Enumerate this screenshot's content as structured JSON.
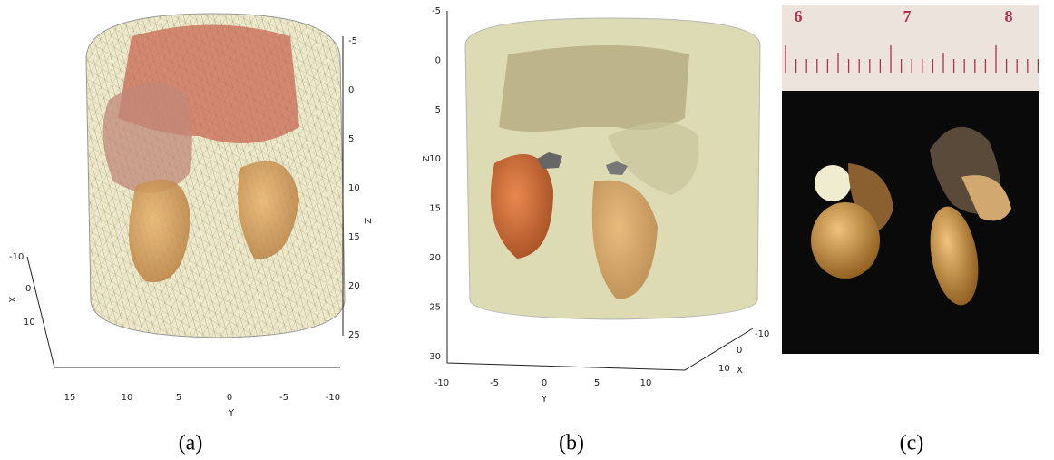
{
  "panels": [
    {
      "caption": "(a)",
      "z_axis_label": "Z",
      "z_ticks": [
        "-5",
        "0",
        "5",
        "10",
        "15",
        "20",
        "25"
      ],
      "y_axis_label": "Y",
      "y_ticks": [
        "15",
        "10",
        "5",
        "0",
        "-5",
        "-10"
      ],
      "x_axis_label": "X",
      "x_ticks": [
        "-10",
        "0",
        "10"
      ]
    },
    {
      "caption": "(b)",
      "z_axis_label": "Z",
      "z_ticks": [
        "-5",
        "0",
        "5",
        "10",
        "15",
        "20",
        "25",
        "30"
      ],
      "y_axis_label": "Y",
      "y_ticks": [
        "-10",
        "-5",
        "0",
        "5",
        "10"
      ],
      "x_axis_label": "X",
      "x_ticks": [
        "-10",
        "0",
        "10"
      ]
    },
    {
      "caption": "(c)",
      "ruler_labels": [
        "6",
        "7",
        "8"
      ]
    }
  ]
}
